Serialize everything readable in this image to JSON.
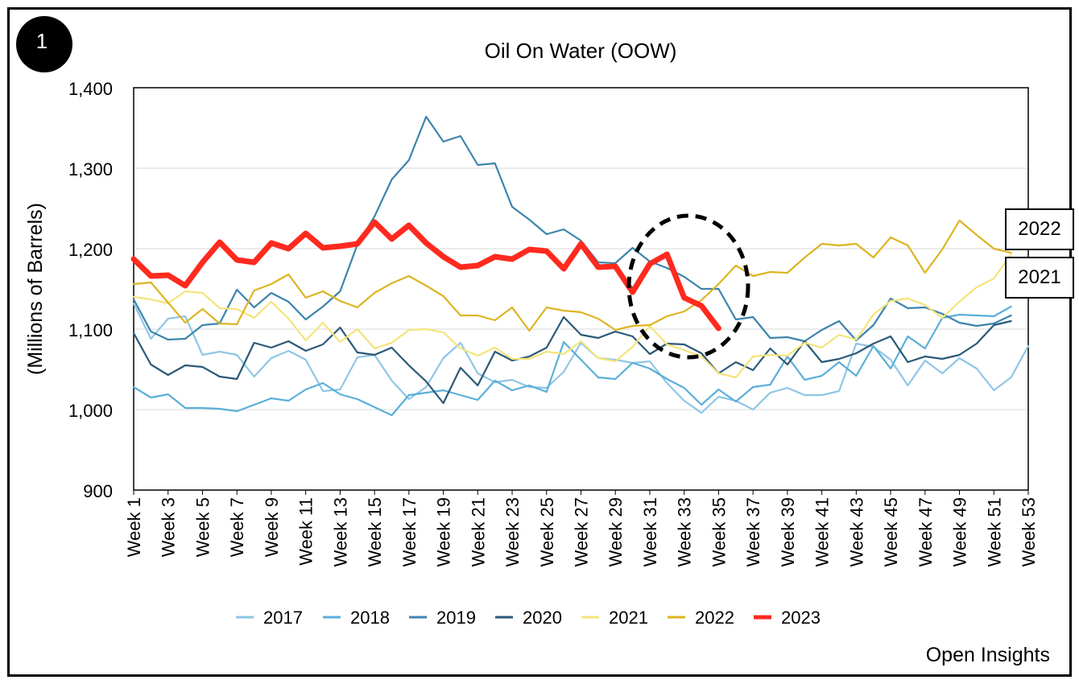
{
  "badge_number": "1",
  "brand": "Open Insights",
  "year_callouts": [
    "2022",
    "2021"
  ],
  "colors": {
    "2017": "#8fc6e6",
    "2018": "#5aafd9",
    "2019": "#3d84ad",
    "2020": "#2b5978",
    "2021": "#f4e47a",
    "2022": "#dcb523",
    "2023": "#ff2a1f",
    "highlight_circle": "#000000",
    "grid": "#d9d9d9"
  },
  "chart_data": {
    "type": "line",
    "title": "Oil On Water (OOW)",
    "xlabel": "",
    "ylabel": "(Millions of Barrels)",
    "ylim": [
      900,
      1400
    ],
    "yticks": [
      "900",
      "1,000",
      "1,100",
      "1,200",
      "1,300",
      "1,400"
    ],
    "grid": "horizontal",
    "legend_position": "bottom",
    "annotation": "dashed circle around weeks 31-35",
    "categories": [
      "Week 1",
      "Week 2",
      "Week 3",
      "Week 4",
      "Week 5",
      "Week 6",
      "Week 7",
      "Week 8",
      "Week 9",
      "Week 10",
      "Week 11",
      "Week 12",
      "Week 13",
      "Week 14",
      "Week 15",
      "Week 16",
      "Week 17",
      "Week 18",
      "Week 19",
      "Week 20",
      "Week 21",
      "Week 22",
      "Week 23",
      "Week 24",
      "Week 25",
      "Week 26",
      "Week 27",
      "Week 28",
      "Week 29",
      "Week 30",
      "Week 31",
      "Week 32",
      "Week 33",
      "Week 34",
      "Week 35",
      "Week 36",
      "Week 37",
      "Week 38",
      "Week 39",
      "Week 40",
      "Week 41",
      "Week 42",
      "Week 43",
      "Week 44",
      "Week 45",
      "Week 46",
      "Week 47",
      "Week 48",
      "Week 49",
      "Week 50",
      "Week 51",
      "Week 52",
      "Week 53"
    ],
    "tick_labels": [
      "Week 1",
      "Week 3",
      "Week 5",
      "Week 7",
      "Week 9",
      "Week 11",
      "Week 13",
      "Week 15",
      "Week 17",
      "Week 19",
      "Week 21",
      "Week 23",
      "Week 25",
      "Week 27",
      "Week 29",
      "Week 31",
      "Week 33",
      "Week 35",
      "Week 37",
      "Week 39",
      "Week 41",
      "Week 43",
      "Week 45",
      "Week 47",
      "Week 49",
      "Week 51",
      "Week 53"
    ],
    "series": [
      {
        "name": "2017",
        "values": [
          1132,
          1088,
          1113,
          1116,
          1068,
          1072,
          1068,
          1041,
          1064,
          1073,
          1062,
          1023,
          1025,
          1065,
          1068,
          1036,
          1013,
          1028,
          1064,
          1083,
          1045,
          1034,
          1037,
          1028,
          1027,
          1047,
          1083,
          1064,
          1062,
          1058,
          1060,
          1033,
          1011,
          996,
          1016,
          1011,
          1000,
          1021,
          1027,
          1018,
          1018,
          1023,
          1082,
          1078,
          1062,
          1030,
          1061,
          1045,
          1064,
          1051,
          1024,
          1040,
          1079
        ]
      },
      {
        "name": "2018",
        "values": [
          1028,
          1015,
          1019,
          1002,
          1002,
          1001,
          998,
          1006,
          1014,
          1011,
          1025,
          1033,
          1019,
          1013,
          1003,
          993,
          1018,
          1021,
          1024,
          1018,
          1012,
          1036,
          1024,
          1030,
          1022,
          1084,
          1062,
          1040,
          1038,
          1058,
          1051,
          1038,
          1027,
          1006,
          1025,
          1010,
          1028,
          1031,
          1066,
          1037,
          1042,
          1059,
          1042,
          1079,
          1051,
          1091,
          1076,
          1114,
          1118,
          1117,
          1116,
          1128,
          null
        ]
      },
      {
        "name": "2019",
        "values": [
          1137,
          1097,
          1087,
          1088,
          1105,
          1107,
          1149,
          1127,
          1145,
          1134,
          1112,
          1128,
          1147,
          1205,
          1240,
          1286,
          1310,
          1364,
          1333,
          1340,
          1304,
          1306,
          1252,
          1236,
          1218,
          1224,
          1210,
          1183,
          1182,
          1201,
          1184,
          1176,
          1165,
          1150,
          1150,
          1112,
          1115,
          1089,
          1090,
          1085,
          1099,
          1110,
          1086,
          1105,
          1138,
          1126,
          1127,
          1119,
          1108,
          1104,
          1107,
          1117,
          null
        ]
      },
      {
        "name": "2020",
        "values": [
          1095,
          1056,
          1043,
          1055,
          1053,
          1041,
          1038,
          1083,
          1077,
          1085,
          1073,
          1081,
          1102,
          1071,
          1068,
          1077,
          1055,
          1035,
          1008,
          1052,
          1030,
          1072,
          1061,
          1066,
          1077,
          1115,
          1093,
          1089,
          1097,
          1091,
          1069,
          1082,
          1081,
          1070,
          1045,
          1059,
          1049,
          1076,
          1056,
          1085,
          1059,
          1063,
          1070,
          1082,
          1091,
          1059,
          1066,
          1063,
          1068,
          1082,
          1105,
          1110,
          null
        ]
      },
      {
        "name": "2021",
        "values": [
          1140,
          1137,
          1132,
          1147,
          1145,
          1126,
          1125,
          1114,
          1134,
          1113,
          1086,
          1108,
          1084,
          1100,
          1076,
          1083,
          1099,
          1100,
          1096,
          1076,
          1067,
          1077,
          1063,
          1063,
          1072,
          1069,
          1085,
          1064,
          1060,
          1078,
          1104,
          1081,
          1074,
          1066,
          1045,
          1040,
          1066,
          1068,
          1067,
          1083,
          1077,
          1093,
          1087,
          1118,
          1135,
          1138,
          1130,
          1114,
          1134,
          1152,
          1163,
          1193,
          null
        ]
      },
      {
        "name": "2022",
        "values": [
          1156,
          1158,
          1133,
          1108,
          1125,
          1107,
          1106,
          1148,
          1156,
          1168,
          1139,
          1147,
          1135,
          1127,
          1145,
          1157,
          1166,
          1154,
          1141,
          1117,
          1117,
          1111,
          1127,
          1098,
          1127,
          1123,
          1121,
          1113,
          1099,
          1104,
          1105,
          1116,
          1122,
          1136,
          1156,
          1179,
          1166,
          1171,
          1170,
          1189,
          1206,
          1204,
          1206,
          1189,
          1214,
          1204,
          1170,
          1199,
          1235,
          1217,
          1200,
          1195,
          null
        ]
      },
      {
        "name": "2023",
        "values": [
          1187,
          1166,
          1167,
          1154,
          1183,
          1208,
          1186,
          1183,
          1207,
          1200,
          1219,
          1201,
          1203,
          1206,
          1233,
          1212,
          1229,
          1207,
          1190,
          1177,
          1179,
          1190,
          1187,
          1199,
          1197,
          1175,
          1206,
          1177,
          1178,
          1146,
          1181,
          1193,
          1139,
          1129,
          1101,
          null,
          null,
          null,
          null,
          null,
          null,
          null,
          null,
          null,
          null,
          null,
          null,
          null,
          null,
          null,
          null,
          null,
          null
        ]
      }
    ]
  }
}
